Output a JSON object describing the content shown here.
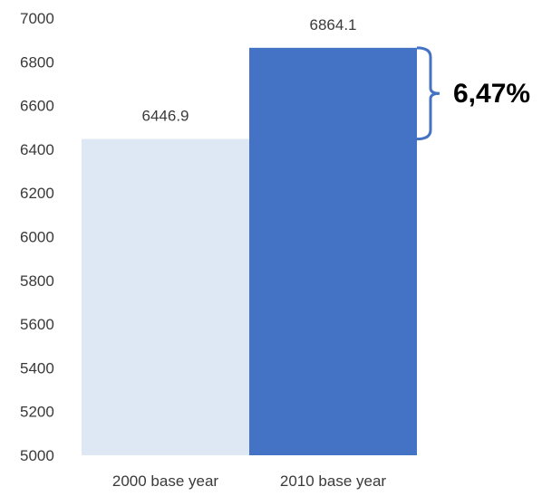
{
  "chart_data": {
    "type": "bar",
    "categories": [
      "2000 base year",
      "2010 base year"
    ],
    "values": [
      6446.9,
      6864.1
    ],
    "data_labels": [
      "6446.9",
      "6864.1"
    ],
    "bar_colors": [
      "#dde8f4",
      "#4472c4"
    ],
    "ylim": [
      5000,
      7000
    ],
    "yticks": [
      5000,
      5200,
      5400,
      5600,
      5800,
      6000,
      6200,
      6400,
      6600,
      6800,
      7000
    ],
    "ytick_labels": [
      "5000",
      "5200",
      "5400",
      "5600",
      "5800",
      "6000",
      "6200",
      "6400",
      "6600",
      "6800",
      "7000"
    ],
    "grid": false,
    "annotation": {
      "text": "6,47%",
      "type": "bracket-between-bar-tops",
      "from_value": 6446.9,
      "to_value": 6864.1,
      "color": "#4472c4"
    }
  }
}
